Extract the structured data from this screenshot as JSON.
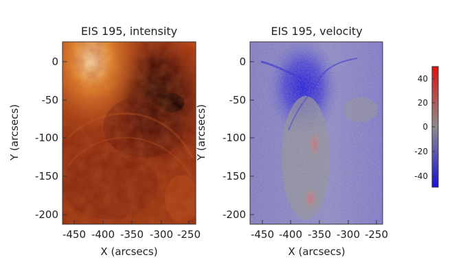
{
  "panels": [
    {
      "title": "EIS 195, intensity",
      "xlabel": "X (arcsecs)",
      "ylabel": "Y (arcsecs)",
      "x_ticks": [
        "-450",
        "-400",
        "-350",
        "-300",
        "-250"
      ],
      "y_ticks": [
        "0",
        "-50",
        "-100",
        "-150",
        "-200"
      ],
      "colormap": [
        "#2a0a05",
        "#6e1a0c",
        "#a8380f",
        "#e0741e",
        "#fff0c8"
      ]
    },
    {
      "title": "EIS 195, velocity",
      "xlabel": "X (arcsecs)",
      "ylabel": "Y (arcsecs)",
      "x_ticks": [
        "-450",
        "-400",
        "-350",
        "-300",
        "-250"
      ],
      "y_ticks": [
        "0",
        "-50",
        "-100",
        "-150",
        "-200"
      ],
      "colormap": [
        "#1a10d8",
        "#6a6ad0",
        "#8c8c8c",
        "#d07070",
        "#e01010"
      ]
    }
  ],
  "colorbar": {
    "ticks": [
      "40",
      "20",
      "0",
      "-20",
      "-40"
    ],
    "colors": [
      "#e01010",
      "#8c8c8c",
      "#1a10d8"
    ]
  }
}
